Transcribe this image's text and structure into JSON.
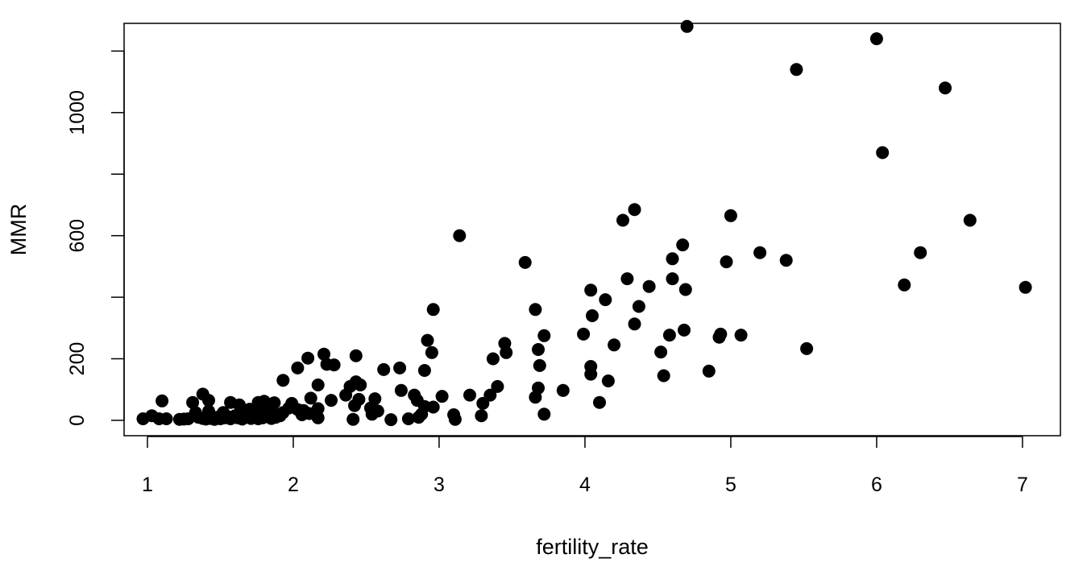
{
  "chart_data": {
    "type": "scatter",
    "title": "",
    "xlabel": "fertility_rate",
    "ylabel": "MMR",
    "xlim": [
      0.84,
      7.26
    ],
    "ylim": [
      -50,
      1290
    ],
    "x_ticks": [
      1,
      2,
      3,
      4,
      5,
      6,
      7
    ],
    "x_tick_labels": [
      "1",
      "2",
      "3",
      "4",
      "5",
      "6",
      "7"
    ],
    "y_ticks": [
      0,
      200,
      400,
      600,
      800,
      1000,
      1200
    ],
    "y_tick_labels": [
      "0",
      "200",
      "",
      "600",
      "",
      "1000",
      ""
    ],
    "grid": false,
    "legend": "none",
    "marker_color": "#000000",
    "points": [
      {
        "x": 6.0,
        "y": 1240
      },
      {
        "x": 4.7,
        "y": 1280
      },
      {
        "x": 5.45,
        "y": 1140
      },
      {
        "x": 6.47,
        "y": 1080
      },
      {
        "x": 6.04,
        "y": 870
      },
      {
        "x": 4.34,
        "y": 685
      },
      {
        "x": 4.26,
        "y": 650
      },
      {
        "x": 5.0,
        "y": 665
      },
      {
        "x": 6.64,
        "y": 650
      },
      {
        "x": 3.14,
        "y": 600
      },
      {
        "x": 4.67,
        "y": 570
      },
      {
        "x": 5.2,
        "y": 545
      },
      {
        "x": 5.38,
        "y": 520
      },
      {
        "x": 6.3,
        "y": 545
      },
      {
        "x": 4.6,
        "y": 525
      },
      {
        "x": 4.97,
        "y": 515
      },
      {
        "x": 3.59,
        "y": 513
      },
      {
        "x": 4.29,
        "y": 460
      },
      {
        "x": 4.6,
        "y": 460
      },
      {
        "x": 4.44,
        "y": 435
      },
      {
        "x": 6.19,
        "y": 440
      },
      {
        "x": 7.02,
        "y": 432
      },
      {
        "x": 4.04,
        "y": 423
      },
      {
        "x": 4.69,
        "y": 425
      },
      {
        "x": 4.14,
        "y": 392
      },
      {
        "x": 2.96,
        "y": 360
      },
      {
        "x": 3.66,
        "y": 360
      },
      {
        "x": 4.37,
        "y": 370
      },
      {
        "x": 4.05,
        "y": 340
      },
      {
        "x": 4.34,
        "y": 313
      },
      {
        "x": 2.92,
        "y": 260
      },
      {
        "x": 3.45,
        "y": 250
      },
      {
        "x": 3.72,
        "y": 275
      },
      {
        "x": 3.99,
        "y": 280
      },
      {
        "x": 4.58,
        "y": 277
      },
      {
        "x": 4.68,
        "y": 293
      },
      {
        "x": 4.92,
        "y": 270
      },
      {
        "x": 4.93,
        "y": 280
      },
      {
        "x": 5.07,
        "y": 277
      },
      {
        "x": 4.2,
        "y": 245
      },
      {
        "x": 2.21,
        "y": 215
      },
      {
        "x": 2.43,
        "y": 210
      },
      {
        "x": 2.95,
        "y": 220
      },
      {
        "x": 3.46,
        "y": 220
      },
      {
        "x": 3.68,
        "y": 230
      },
      {
        "x": 4.52,
        "y": 222
      },
      {
        "x": 5.52,
        "y": 233
      },
      {
        "x": 2.1,
        "y": 202
      },
      {
        "x": 2.23,
        "y": 182
      },
      {
        "x": 2.28,
        "y": 180
      },
      {
        "x": 3.37,
        "y": 200
      },
      {
        "x": 3.69,
        "y": 178
      },
      {
        "x": 2.03,
        "y": 170
      },
      {
        "x": 2.62,
        "y": 165
      },
      {
        "x": 2.73,
        "y": 170
      },
      {
        "x": 2.9,
        "y": 162
      },
      {
        "x": 4.04,
        "y": 175
      },
      {
        "x": 4.04,
        "y": 150
      },
      {
        "x": 4.54,
        "y": 145
      },
      {
        "x": 4.85,
        "y": 160
      },
      {
        "x": 1.93,
        "y": 130
      },
      {
        "x": 2.43,
        "y": 125
      },
      {
        "x": 4.16,
        "y": 128
      },
      {
        "x": 2.17,
        "y": 115
      },
      {
        "x": 2.39,
        "y": 110
      },
      {
        "x": 2.46,
        "y": 115
      },
      {
        "x": 3.4,
        "y": 110
      },
      {
        "x": 3.68,
        "y": 105
      },
      {
        "x": 1.38,
        "y": 85
      },
      {
        "x": 2.74,
        "y": 97
      },
      {
        "x": 3.85,
        "y": 97
      },
      {
        "x": 2.36,
        "y": 82
      },
      {
        "x": 2.83,
        "y": 82
      },
      {
        "x": 3.21,
        "y": 82
      },
      {
        "x": 3.35,
        "y": 82
      },
      {
        "x": 3.02,
        "y": 78
      },
      {
        "x": 3.66,
        "y": 75
      },
      {
        "x": 1.1,
        "y": 63
      },
      {
        "x": 1.42,
        "y": 65
      },
      {
        "x": 1.57,
        "y": 58
      },
      {
        "x": 2.12,
        "y": 72
      },
      {
        "x": 2.26,
        "y": 65
      },
      {
        "x": 2.45,
        "y": 68
      },
      {
        "x": 2.56,
        "y": 70
      },
      {
        "x": 2.85,
        "y": 65
      },
      {
        "x": 4.1,
        "y": 58
      },
      {
        "x": 1.31,
        "y": 58
      },
      {
        "x": 1.63,
        "y": 50
      },
      {
        "x": 1.76,
        "y": 58
      },
      {
        "x": 1.8,
        "y": 62
      },
      {
        "x": 1.87,
        "y": 57
      },
      {
        "x": 1.99,
        "y": 55
      },
      {
        "x": 2.42,
        "y": 48
      },
      {
        "x": 3.3,
        "y": 55
      },
      {
        "x": 1.33,
        "y": 25
      },
      {
        "x": 1.42,
        "y": 30
      },
      {
        "x": 1.52,
        "y": 25
      },
      {
        "x": 1.64,
        "y": 30
      },
      {
        "x": 1.7,
        "y": 36
      },
      {
        "x": 1.74,
        "y": 30
      },
      {
        "x": 1.79,
        "y": 40
      },
      {
        "x": 1.83,
        "y": 35
      },
      {
        "x": 1.86,
        "y": 28
      },
      {
        "x": 1.93,
        "y": 25
      },
      {
        "x": 1.97,
        "y": 40
      },
      {
        "x": 2.03,
        "y": 35
      },
      {
        "x": 2.07,
        "y": 32
      },
      {
        "x": 2.17,
        "y": 38
      },
      {
        "x": 2.53,
        "y": 40
      },
      {
        "x": 2.58,
        "y": 30
      },
      {
        "x": 2.9,
        "y": 45
      },
      {
        "x": 2.96,
        "y": 43
      },
      {
        "x": 2.88,
        "y": 20
      },
      {
        "x": 3.1,
        "y": 18
      },
      {
        "x": 3.29,
        "y": 15
      },
      {
        "x": 3.72,
        "y": 20
      },
      {
        "x": 0.97,
        "y": 5
      },
      {
        "x": 1.03,
        "y": 15
      },
      {
        "x": 1.08,
        "y": 5
      },
      {
        "x": 1.13,
        "y": 5
      },
      {
        "x": 1.22,
        "y": 3
      },
      {
        "x": 1.25,
        "y": 4
      },
      {
        "x": 1.28,
        "y": 5
      },
      {
        "x": 1.35,
        "y": 10
      },
      {
        "x": 1.38,
        "y": 6
      },
      {
        "x": 1.4,
        "y": 4
      },
      {
        "x": 1.43,
        "y": 6
      },
      {
        "x": 1.46,
        "y": 3
      },
      {
        "x": 1.48,
        "y": 10
      },
      {
        "x": 1.5,
        "y": 5
      },
      {
        "x": 1.53,
        "y": 8
      },
      {
        "x": 1.55,
        "y": 12
      },
      {
        "x": 1.57,
        "y": 5
      },
      {
        "x": 1.6,
        "y": 15
      },
      {
        "x": 1.62,
        "y": 8
      },
      {
        "x": 1.65,
        "y": 4
      },
      {
        "x": 1.68,
        "y": 10
      },
      {
        "x": 1.71,
        "y": 6
      },
      {
        "x": 1.73,
        "y": 14
      },
      {
        "x": 1.76,
        "y": 5
      },
      {
        "x": 1.79,
        "y": 8
      },
      {
        "x": 1.82,
        "y": 12
      },
      {
        "x": 1.85,
        "y": 6
      },
      {
        "x": 1.88,
        "y": 10
      },
      {
        "x": 1.91,
        "y": 15
      },
      {
        "x": 2.06,
        "y": 18
      },
      {
        "x": 2.11,
        "y": 22
      },
      {
        "x": 2.17,
        "y": 8
      },
      {
        "x": 2.41,
        "y": 3
      },
      {
        "x": 2.54,
        "y": 20
      },
      {
        "x": 2.67,
        "y": 2
      },
      {
        "x": 2.79,
        "y": 5
      },
      {
        "x": 2.86,
        "y": 10
      },
      {
        "x": 3.11,
        "y": 3
      }
    ]
  }
}
